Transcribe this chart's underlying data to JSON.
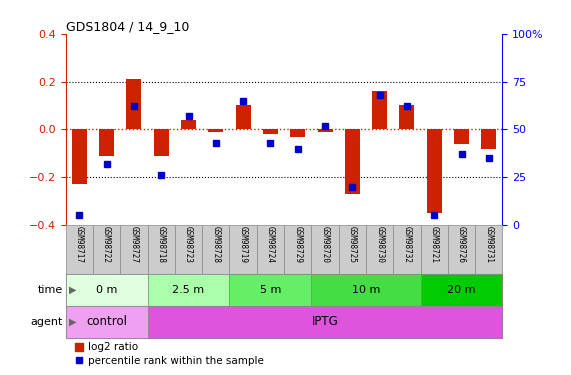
{
  "title": "GDS1804 / 14_9_10",
  "samples": [
    "GSM98717",
    "GSM98722",
    "GSM98727",
    "GSM98718",
    "GSM98723",
    "GSM98728",
    "GSM98719",
    "GSM98724",
    "GSM98729",
    "GSM98720",
    "GSM98725",
    "GSM98730",
    "GSM98732",
    "GSM98721",
    "GSM98726",
    "GSM98731"
  ],
  "log2_ratio": [
    -0.23,
    -0.11,
    0.21,
    -0.11,
    0.04,
    -0.01,
    0.1,
    -0.02,
    -0.03,
    -0.01,
    -0.27,
    0.16,
    0.1,
    -0.35,
    -0.06,
    -0.08
  ],
  "percentile_rank": [
    5,
    32,
    62,
    26,
    57,
    43,
    65,
    43,
    40,
    52,
    20,
    68,
    62,
    5,
    37,
    35
  ],
  "time_groups": [
    {
      "label": "0 m",
      "start": 0,
      "end": 3,
      "color": "#e0ffe0"
    },
    {
      "label": "2.5 m",
      "start": 3,
      "end": 6,
      "color": "#aaffaa"
    },
    {
      "label": "5 m",
      "start": 6,
      "end": 9,
      "color": "#66ee66"
    },
    {
      "label": "10 m",
      "start": 9,
      "end": 13,
      "color": "#44dd44"
    },
    {
      "label": "20 m",
      "start": 13,
      "end": 16,
      "color": "#00cc00"
    }
  ],
  "agent_groups": [
    {
      "label": "control",
      "start": 0,
      "end": 3,
      "color": "#f0a0f0"
    },
    {
      "label": "IPTG",
      "start": 3,
      "end": 16,
      "color": "#dd55dd"
    }
  ],
  "ylim_left": [
    -0.4,
    0.4
  ],
  "ylim_right": [
    0,
    100
  ],
  "yticks_left": [
    -0.4,
    -0.2,
    0.0,
    0.2,
    0.4
  ],
  "yticks_right": [
    0,
    25,
    50,
    75,
    100
  ],
  "bar_color": "#cc2200",
  "dot_color": "#0000cc",
  "zero_line_color": "#cc2200",
  "sample_box_color": "#cccccc",
  "sample_box_edge": "#888888"
}
